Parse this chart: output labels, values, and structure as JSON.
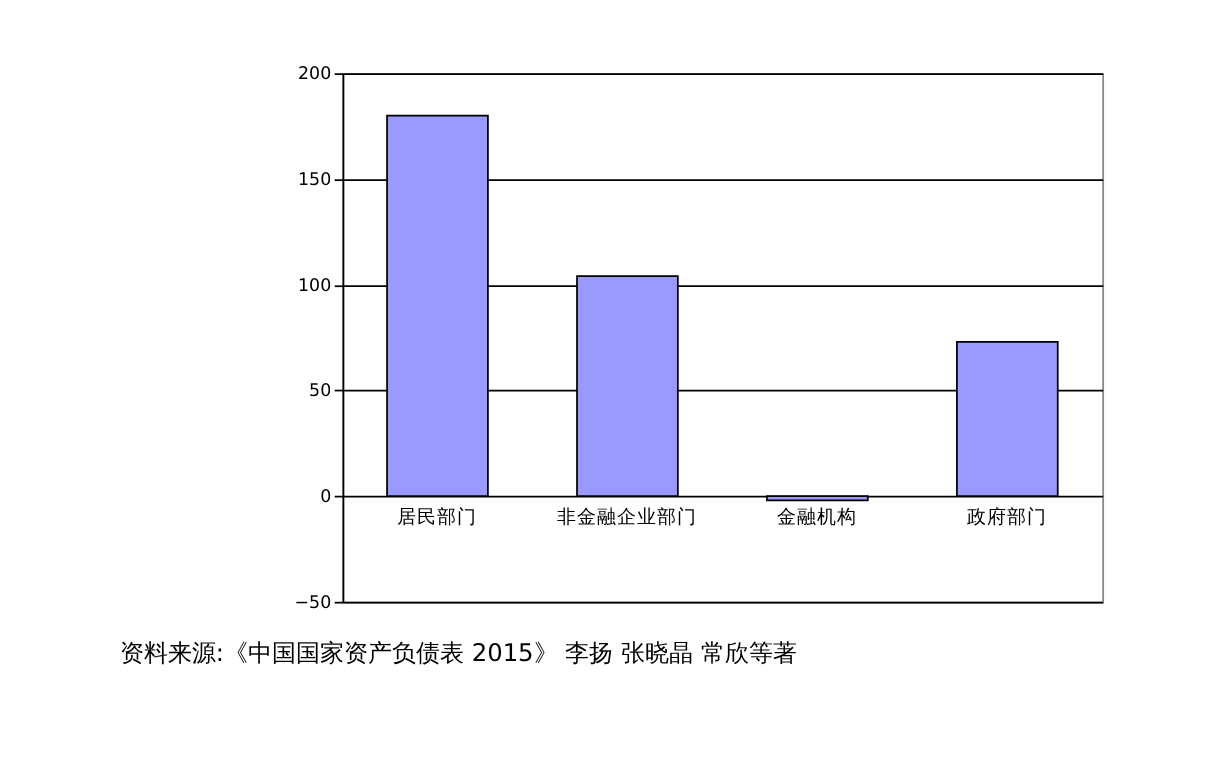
{
  "chart_data": {
    "type": "bar",
    "categories": [
      "居民部门",
      "非金融企业部门",
      "金融机构",
      "政府部门"
    ],
    "values": [
      180,
      104,
      -2,
      73
    ],
    "color": "#9999ff",
    "ylim": [
      -50,
      200
    ],
    "yticks": [
      -50,
      0,
      50,
      100,
      150,
      200
    ],
    "grid": "y",
    "annotations": [
      "资料来源:《中国国家资产负债表 2015》   李扬  张晓晶  常欣等著"
    ]
  }
}
